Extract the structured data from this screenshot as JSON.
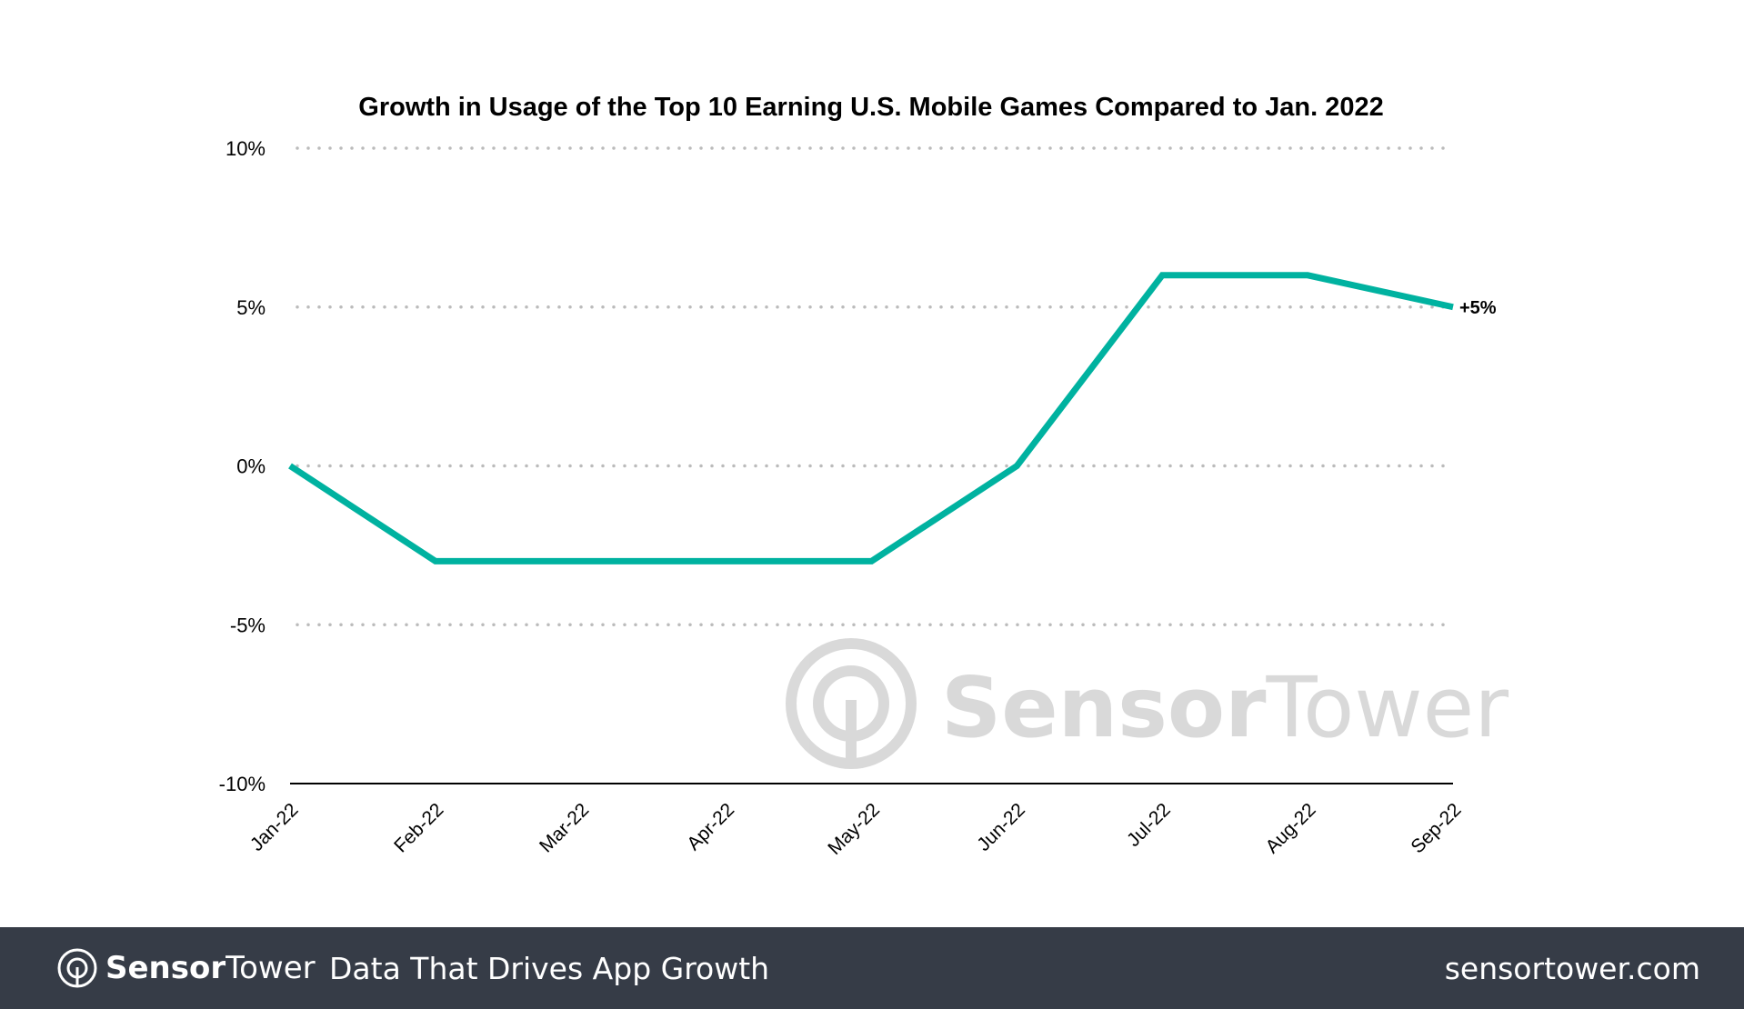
{
  "chart_data": {
    "type": "line",
    "title": "Growth in Usage of the Top 10 Earning U.S. Mobile Games Compared to Jan. 2022",
    "categories": [
      "Jan-22",
      "Feb-22",
      "Mar-22",
      "Apr-22",
      "May-22",
      "Jun-22",
      "Jul-22",
      "Aug-22",
      "Sep-22"
    ],
    "series": [
      {
        "values": [
          0,
          -3,
          -3,
          -3,
          -3,
          0,
          6,
          6,
          5
        ],
        "color": "#00b2a0"
      }
    ],
    "yticks": [
      10,
      5,
      0,
      -5,
      -10
    ],
    "ytick_labels": [
      "10%",
      "5%",
      "0%",
      "-5%",
      "-10%"
    ],
    "ylim": [
      -10,
      10
    ],
    "grid": "dotted horizontal",
    "end_label": "+5%",
    "xlabel": "",
    "ylabel": ""
  },
  "watermark": "SensorTower",
  "footer": {
    "brand_bold": "Sensor",
    "brand_light": "Tower",
    "tagline": "Data That Drives App Growth",
    "url": "sensortower.com",
    "bg": "#363c47"
  }
}
